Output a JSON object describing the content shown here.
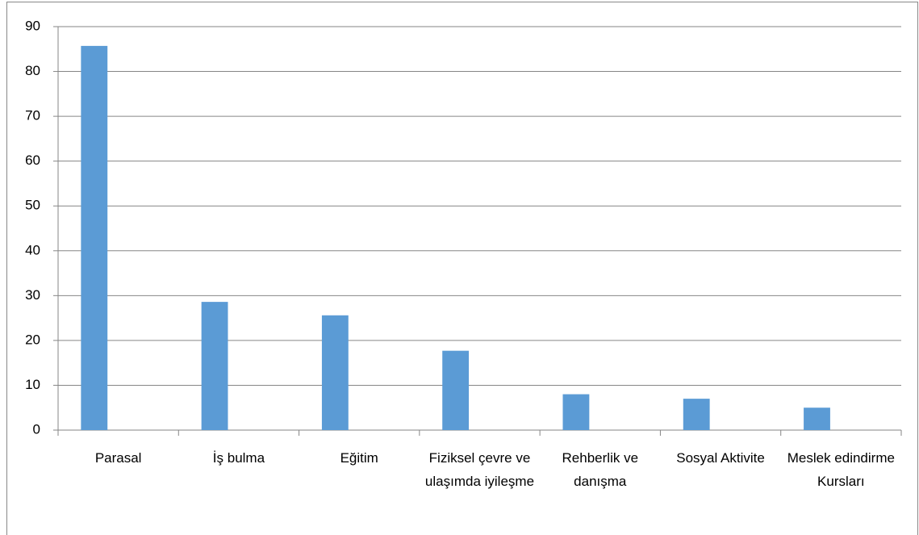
{
  "chart_data": {
    "type": "bar",
    "categories": [
      "Parasal",
      "İş bulma",
      "Eğitim",
      "Fiziksel çevre ve ulaşımda iyileşme",
      "Rehberlik ve danışma",
      "Sosyal Aktivite",
      "Meslek edindirme Kursları"
    ],
    "values": [
      85.7,
      28.6,
      25.6,
      17.7,
      8,
      7,
      5
    ],
    "color": "#5b9bd5",
    "ylim": [
      0,
      90
    ],
    "yticks": [
      0,
      10,
      20,
      30,
      40,
      50,
      60,
      70,
      80,
      90
    ],
    "grid": true
  }
}
